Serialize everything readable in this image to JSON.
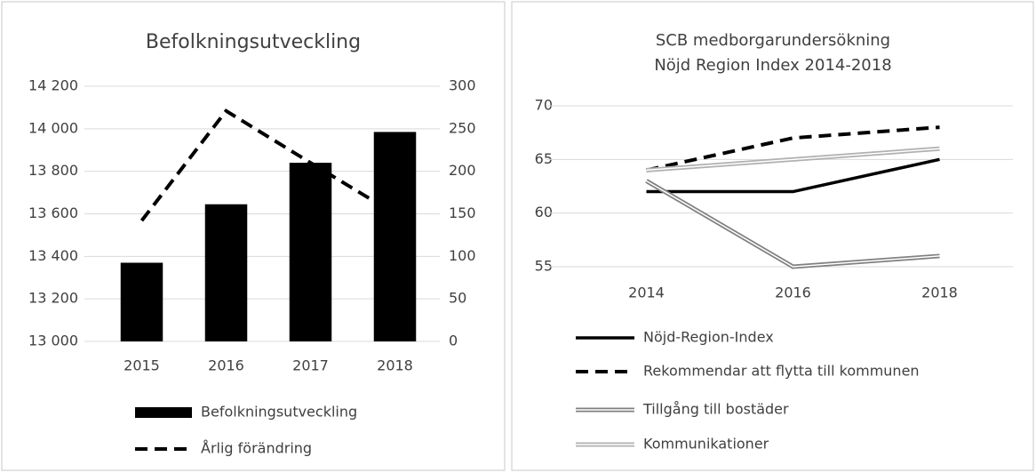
{
  "chart_data": [
    {
      "type": "bar",
      "title": "Befolkningsutveckling",
      "categories": [
        "2015",
        "2016",
        "2017",
        "2018"
      ],
      "series": [
        {
          "name": "Befolkningsutveckling",
          "type": "bar",
          "color": "#000000",
          "values": [
            13370,
            13645,
            13840,
            13985
          ]
        },
        {
          "name": "Årlig förändring",
          "type": "line",
          "axis": "y2",
          "color": "#000000",
          "dash": true,
          "values": [
            142,
            271,
            210,
            150
          ]
        }
      ],
      "ylim": [
        13000,
        14200
      ],
      "yticks": [
        {
          "value": 13000,
          "label": "13 000"
        },
        {
          "value": 13200,
          "label": "13 200"
        },
        {
          "value": 13400,
          "label": "13 400"
        },
        {
          "value": 13600,
          "label": "13 600"
        },
        {
          "value": 13800,
          "label": "13 800"
        },
        {
          "value": 14000,
          "label": "14 000"
        },
        {
          "value": 14200,
          "label": "14 200"
        }
      ],
      "y2lim": [
        0,
        300
      ],
      "y2ticks": [
        0,
        50,
        100,
        150,
        200,
        250,
        300
      ],
      "grid": true,
      "legend": "bottom"
    },
    {
      "type": "line",
      "title": "SCB medborgarundersökning",
      "subtitle": "Nöjd Region Index 2014-2018",
      "categories": [
        "2014",
        "2016",
        "2018"
      ],
      "series": [
        {
          "name": "Nöjd-Region-Index",
          "color": "#000000",
          "values": [
            62,
            62,
            65
          ]
        },
        {
          "name": "Rekommendar att flytta till kommunen",
          "color": "#000000",
          "dash": true,
          "values": [
            64,
            67,
            68
          ]
        },
        {
          "name": "Tillgång till bostäder",
          "color": "#808080",
          "double": true,
          "values": [
            63,
            55,
            56
          ]
        },
        {
          "name": "Kommunikationer",
          "color": "#b0b0b0",
          "double": true,
          "values": [
            64,
            65,
            66
          ]
        }
      ],
      "ylim": [
        55,
        70
      ],
      "yticks": [
        55,
        60,
        65,
        70
      ],
      "grid": true,
      "legend": "bottom"
    }
  ]
}
